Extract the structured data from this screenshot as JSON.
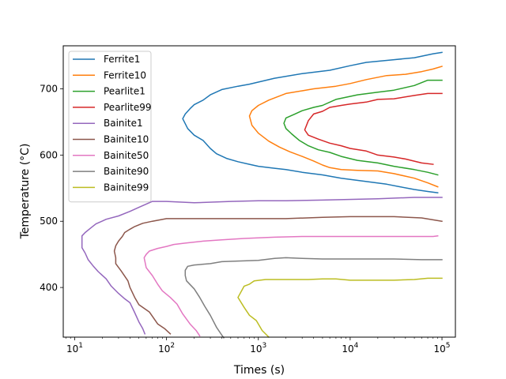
{
  "chart_data": {
    "type": "line",
    "xlabel": "Times (s)",
    "ylabel": "Temperature (°C)",
    "xscale": "log",
    "xlim": [
      7.5,
      140000
    ],
    "ylim": [
      325,
      765
    ],
    "xticks": [
      {
        "value": 10,
        "base": "10",
        "exp": "1"
      },
      {
        "value": 100,
        "base": "10",
        "exp": "2"
      },
      {
        "value": 1000,
        "base": "10",
        "exp": "3"
      },
      {
        "value": 10000,
        "base": "10",
        "exp": "4"
      },
      {
        "value": 100000,
        "base": "10",
        "exp": "5"
      }
    ],
    "yticks": [
      {
        "value": 400,
        "label": "400"
      },
      {
        "value": 500,
        "label": "500"
      },
      {
        "value": 600,
        "label": "600"
      },
      {
        "value": 700,
        "label": "700"
      }
    ],
    "legend_position": "upper-left",
    "series": [
      {
        "name": "Ferrite1",
        "color": "#1f77b4",
        "points": [
          [
            100000,
            755
          ],
          [
            80000,
            753
          ],
          [
            50000,
            747
          ],
          [
            30000,
            744
          ],
          [
            15000,
            740
          ],
          [
            10000,
            735
          ],
          [
            6000,
            728
          ],
          [
            3000,
            723
          ],
          [
            1500,
            716
          ],
          [
            800,
            707
          ],
          [
            600,
            704
          ],
          [
            400,
            699
          ],
          [
            300,
            691
          ],
          [
            250,
            683
          ],
          [
            200,
            676
          ],
          [
            180,
            670
          ],
          [
            160,
            662
          ],
          [
            150,
            655
          ],
          [
            170,
            640
          ],
          [
            200,
            630
          ],
          [
            250,
            622
          ],
          [
            300,
            610
          ],
          [
            350,
            602
          ],
          [
            450,
            595
          ],
          [
            600,
            590
          ],
          [
            800,
            586
          ],
          [
            1000,
            583
          ],
          [
            1500,
            580
          ],
          [
            2000,
            578
          ],
          [
            3000,
            574
          ],
          [
            5000,
            570
          ],
          [
            8000,
            565
          ],
          [
            15000,
            560
          ],
          [
            25000,
            556
          ],
          [
            35000,
            552
          ],
          [
            50000,
            548
          ],
          [
            70000,
            545
          ],
          [
            90000,
            543
          ]
        ]
      },
      {
        "name": "Ferrite10",
        "color": "#ff7f0e",
        "points": [
          [
            100000,
            734
          ],
          [
            80000,
            730
          ],
          [
            60000,
            726
          ],
          [
            40000,
            722
          ],
          [
            25000,
            720
          ],
          [
            15000,
            714
          ],
          [
            10000,
            708
          ],
          [
            7000,
            704
          ],
          [
            4000,
            700
          ],
          [
            3000,
            697
          ],
          [
            2000,
            693
          ],
          [
            1300,
            683
          ],
          [
            1000,
            675
          ],
          [
            850,
            667
          ],
          [
            800,
            659
          ],
          [
            850,
            645
          ],
          [
            1000,
            633
          ],
          [
            1300,
            621
          ],
          [
            1700,
            612
          ],
          [
            2200,
            605
          ],
          [
            3000,
            598
          ],
          [
            4000,
            591
          ],
          [
            5000,
            585
          ],
          [
            6000,
            581
          ],
          [
            8000,
            578
          ],
          [
            12000,
            577
          ],
          [
            20000,
            576
          ],
          [
            30000,
            572
          ],
          [
            50000,
            565
          ],
          [
            70000,
            558
          ],
          [
            90000,
            552
          ]
        ]
      },
      {
        "name": "Pearlite1",
        "color": "#2ca02c",
        "points": [
          [
            100000,
            713
          ],
          [
            70000,
            713
          ],
          [
            50000,
            705
          ],
          [
            30000,
            698
          ],
          [
            20000,
            695
          ],
          [
            12000,
            691
          ],
          [
            7000,
            684
          ],
          [
            5000,
            675
          ],
          [
            4000,
            672
          ],
          [
            3000,
            667
          ],
          [
            2500,
            662
          ],
          [
            2000,
            656
          ],
          [
            1900,
            648
          ],
          [
            2000,
            640
          ],
          [
            2300,
            632
          ],
          [
            2800,
            622
          ],
          [
            3500,
            614
          ],
          [
            4500,
            608
          ],
          [
            6000,
            604
          ],
          [
            8000,
            598
          ],
          [
            12000,
            592
          ],
          [
            20000,
            588
          ],
          [
            30000,
            583
          ],
          [
            50000,
            578
          ],
          [
            70000,
            574
          ],
          [
            90000,
            570
          ]
        ]
      },
      {
        "name": "Pearlite99",
        "color": "#d62728",
        "points": [
          [
            100000,
            693
          ],
          [
            70000,
            693
          ],
          [
            50000,
            690
          ],
          [
            30000,
            685
          ],
          [
            20000,
            684
          ],
          [
            15000,
            680
          ],
          [
            10000,
            677
          ],
          [
            8000,
            675
          ],
          [
            6000,
            672
          ],
          [
            5000,
            666
          ],
          [
            4000,
            662
          ],
          [
            3500,
            652
          ],
          [
            3200,
            638
          ],
          [
            3500,
            630
          ],
          [
            4500,
            624
          ],
          [
            6000,
            618
          ],
          [
            8000,
            614
          ],
          [
            10000,
            610
          ],
          [
            15000,
            606
          ],
          [
            20000,
            600
          ],
          [
            30000,
            597
          ],
          [
            40000,
            594
          ],
          [
            60000,
            588
          ],
          [
            80000,
            586
          ]
        ]
      },
      {
        "name": "Bainite1",
        "color": "#9467bd",
        "points": [
          [
            100000,
            536
          ],
          [
            50000,
            536
          ],
          [
            20000,
            534
          ],
          [
            5000,
            532
          ],
          [
            2000,
            531
          ],
          [
            1000,
            531
          ],
          [
            500,
            530
          ],
          [
            200,
            528
          ],
          [
            100,
            530
          ],
          [
            70,
            530
          ],
          [
            50,
            521
          ],
          [
            40,
            515
          ],
          [
            30,
            508
          ],
          [
            22,
            503
          ],
          [
            17,
            496
          ],
          [
            15,
            490
          ],
          [
            13,
            483
          ],
          [
            12,
            478
          ],
          [
            12,
            470
          ],
          [
            12,
            460
          ],
          [
            13,
            452
          ],
          [
            14,
            442
          ],
          [
            16,
            432
          ],
          [
            18,
            424
          ],
          [
            22,
            413
          ],
          [
            25,
            402
          ],
          [
            30,
            391
          ],
          [
            35,
            383
          ],
          [
            40,
            377
          ],
          [
            45,
            362
          ],
          [
            50,
            348
          ],
          [
            55,
            338
          ],
          [
            58,
            330
          ]
        ]
      },
      {
        "name": "Bainite10",
        "color": "#8c564b",
        "points": [
          [
            100000,
            500
          ],
          [
            60000,
            505
          ],
          [
            30000,
            507
          ],
          [
            10000,
            507
          ],
          [
            5000,
            506
          ],
          [
            2000,
            504
          ],
          [
            800,
            504
          ],
          [
            300,
            504
          ],
          [
            150,
            504
          ],
          [
            100,
            504
          ],
          [
            70,
            500
          ],
          [
            55,
            497
          ],
          [
            45,
            492
          ],
          [
            40,
            488
          ],
          [
            35,
            483
          ],
          [
            33,
            477
          ],
          [
            30,
            470
          ],
          [
            28,
            463
          ],
          [
            27,
            455
          ],
          [
            28,
            445
          ],
          [
            28,
            436
          ],
          [
            32,
            425
          ],
          [
            38,
            410
          ],
          [
            40,
            400
          ],
          [
            45,
            385
          ],
          [
            50,
            374
          ],
          [
            65,
            363
          ],
          [
            80,
            345
          ],
          [
            95,
            338
          ],
          [
            110,
            330
          ]
        ]
      },
      {
        "name": "Bainite50",
        "color": "#e377c2",
        "points": [
          [
            90000,
            478
          ],
          [
            80000,
            477
          ],
          [
            50000,
            477
          ],
          [
            20000,
            477
          ],
          [
            8000,
            477
          ],
          [
            3000,
            477
          ],
          [
            1500,
            476
          ],
          [
            700,
            474
          ],
          [
            400,
            472
          ],
          [
            250,
            470
          ],
          [
            160,
            467
          ],
          [
            120,
            465
          ],
          [
            100,
            462
          ],
          [
            80,
            459
          ],
          [
            65,
            455
          ],
          [
            60,
            450
          ],
          [
            57,
            445
          ],
          [
            60,
            430
          ],
          [
            70,
            418
          ],
          [
            80,
            405
          ],
          [
            90,
            395
          ],
          [
            110,
            385
          ],
          [
            130,
            375
          ],
          [
            150,
            360
          ],
          [
            180,
            345
          ],
          [
            210,
            335
          ],
          [
            230,
            327
          ]
        ]
      },
      {
        "name": "Bainite90",
        "color": "#7f7f7f",
        "points": [
          [
            100000,
            442
          ],
          [
            60000,
            442
          ],
          [
            30000,
            443
          ],
          [
            10000,
            443
          ],
          [
            5000,
            443
          ],
          [
            3000,
            444
          ],
          [
            2000,
            445
          ],
          [
            1500,
            444
          ],
          [
            1000,
            441
          ],
          [
            600,
            440
          ],
          [
            400,
            439
          ],
          [
            300,
            436
          ],
          [
            200,
            434
          ],
          [
            170,
            432
          ],
          [
            160,
            426
          ],
          [
            160,
            418
          ],
          [
            165,
            410
          ],
          [
            200,
            398
          ],
          [
            230,
            385
          ],
          [
            260,
            372
          ],
          [
            300,
            358
          ],
          [
            350,
            340
          ],
          [
            400,
            328
          ],
          [
            420,
            324
          ]
        ]
      },
      {
        "name": "Bainite99",
        "color": "#bcbd22",
        "points": [
          [
            100000,
            414
          ],
          [
            70000,
            414
          ],
          [
            50000,
            412
          ],
          [
            30000,
            411
          ],
          [
            15000,
            411
          ],
          [
            10000,
            411
          ],
          [
            7000,
            413
          ],
          [
            5000,
            413
          ],
          [
            3500,
            412
          ],
          [
            2000,
            412
          ],
          [
            1200,
            412
          ],
          [
            900,
            410
          ],
          [
            800,
            405
          ],
          [
            700,
            402
          ],
          [
            600,
            385
          ],
          [
            700,
            370
          ],
          [
            800,
            358
          ],
          [
            950,
            350
          ],
          [
            1100,
            335
          ],
          [
            1300,
            325
          ]
        ]
      }
    ]
  }
}
